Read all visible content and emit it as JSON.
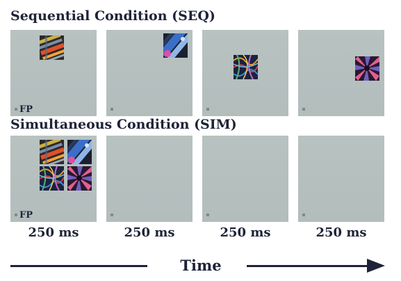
{
  "sequential": {
    "title": "Sequential Condition (SEQ)",
    "fixation_label": "FP"
  },
  "simultaneous": {
    "title": "Simultaneous Condition (SIM)",
    "fixation_label": "FP"
  },
  "durations": [
    "250 ms",
    "250 ms",
    "250 ms",
    "250 ms"
  ],
  "time_axis": {
    "label": "Time"
  },
  "stimuli": [
    "striped-tubes-image",
    "blue-cylinder-image",
    "wire-tangle-image",
    "spiral-tunnel-image"
  ]
}
